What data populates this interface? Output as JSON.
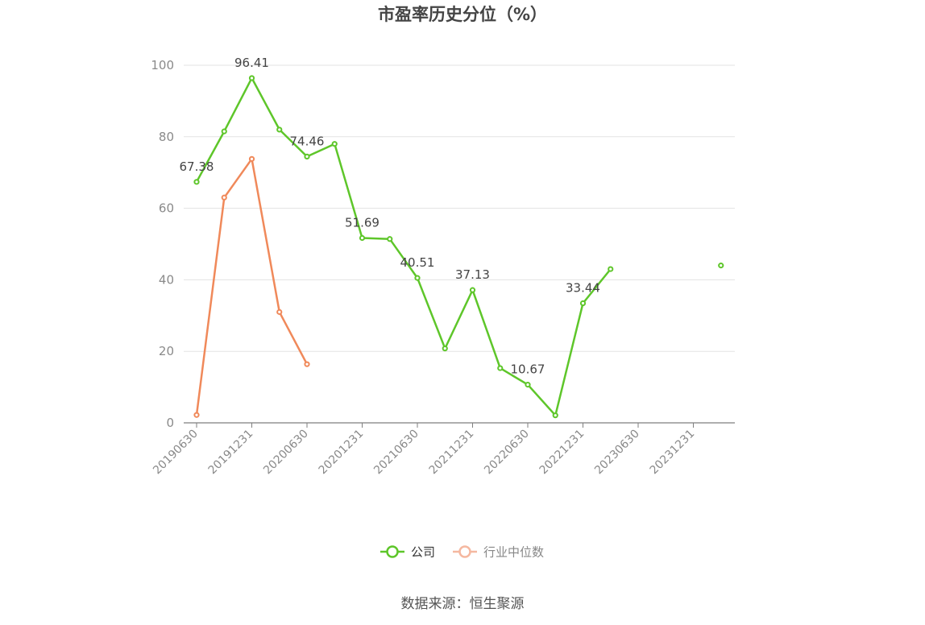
{
  "chart_data": {
    "type": "line",
    "title": "市盈率历史分位（%）",
    "source": "数据来源：恒生聚源",
    "ylim": [
      0,
      100
    ],
    "yticks": [
      0,
      20,
      40,
      60,
      80,
      100
    ],
    "x": [
      "20190630",
      "20190930",
      "20191231",
      "20200331",
      "20200630",
      "20200930",
      "20201231",
      "20210331",
      "20210630",
      "20210930",
      "20211231",
      "20220331",
      "20220630",
      "20220930",
      "20221231",
      "20230331",
      "20230630",
      "20230930",
      "20231231",
      "20240331"
    ],
    "x_tick_labels": [
      "20190630",
      "20191231",
      "20200630",
      "20201231",
      "20210630",
      "20211231",
      "20220630",
      "20221231",
      "20230630",
      "20231231"
    ],
    "grid": true,
    "legend_position": "bottom",
    "series": [
      {
        "name": "公司",
        "color": "#5ec62a",
        "values": [
          67.38,
          81.5,
          96.41,
          82,
          74.46,
          78,
          51.69,
          51.4,
          40.51,
          20.8,
          37.13,
          15.3,
          10.67,
          2.1,
          33.44,
          43,
          null,
          null,
          null,
          44
        ],
        "labels": [
          67.38,
          null,
          96.41,
          null,
          74.46,
          null,
          51.69,
          null,
          40.51,
          null,
          37.13,
          null,
          10.67,
          null,
          33.44,
          null,
          null,
          null,
          null,
          null
        ]
      },
      {
        "name": "行业中位数",
        "color": "#f0895a",
        "legend_color": "#f5b8a0",
        "values": [
          2.2,
          63,
          73.8,
          31,
          16.4,
          null,
          null,
          null,
          null,
          null,
          null,
          null,
          null,
          null,
          null,
          null,
          null,
          null,
          null,
          null
        ],
        "labels": [
          null,
          null,
          null,
          null,
          null,
          null,
          null,
          null,
          null,
          null,
          null,
          null,
          null,
          null,
          null,
          null,
          null,
          null,
          null,
          null
        ]
      }
    ]
  }
}
